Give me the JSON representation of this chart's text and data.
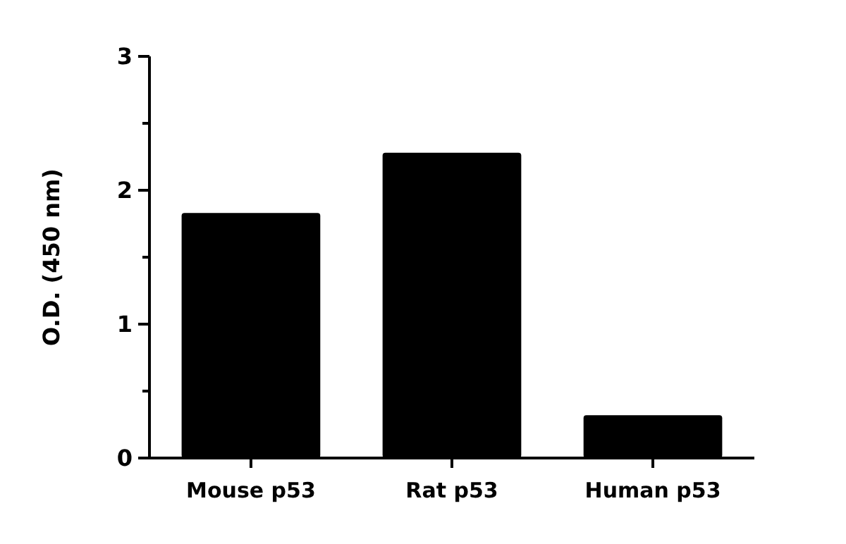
{
  "chart_data": {
    "type": "bar",
    "ylabel": "O.D. (450 nm)",
    "categories": [
      "Mouse p53",
      "Rat p53",
      "Human p53"
    ],
    "values": [
      1.83,
      2.28,
      0.32
    ],
    "color": "#000000",
    "ylim": [
      0,
      3
    ],
    "yticks": [
      0,
      {
        "value": 0.5,
        "label": null
      },
      1,
      {
        "value": 1.5,
        "label": null
      },
      2,
      {
        "value": 2.5,
        "label": null
      },
      3
    ],
    "grid": false
  }
}
